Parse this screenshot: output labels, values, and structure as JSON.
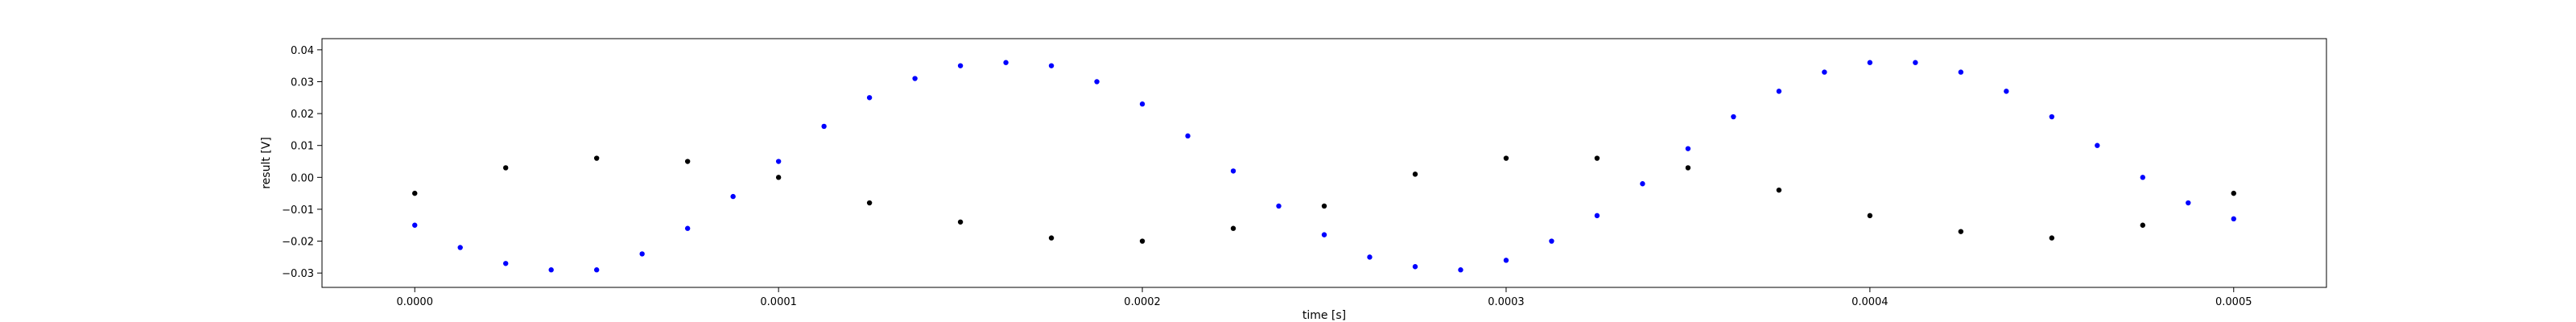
{
  "chart_data": {
    "type": "scatter",
    "title": "",
    "xlabel": "time [s]",
    "ylabel": "result [V]",
    "xlim": [
      -2.55e-05,
      0.0005255
    ],
    "ylim": [
      -0.0345,
      0.0435
    ],
    "xticks": [
      0.0,
      0.0001,
      0.0002,
      0.0003,
      0.0004,
      0.0005
    ],
    "xtick_labels": [
      "0.0000",
      "0.0001",
      "0.0002",
      "0.0003",
      "0.0004",
      "0.0005"
    ],
    "yticks": [
      -0.03,
      -0.02,
      -0.01,
      0.0,
      0.01,
      0.02,
      0.03,
      0.04
    ],
    "ytick_labels": [
      "−0.03",
      "−0.02",
      "−0.01",
      "0.00",
      "0.01",
      "0.02",
      "0.03",
      "0.04"
    ],
    "grid": false,
    "legend": "none",
    "series": [
      {
        "color": "#0000ff",
        "marker": "dot",
        "x": [
          0.0,
          1.25e-05,
          2.5e-05,
          3.75e-05,
          5e-05,
          6.25e-05,
          7.5e-05,
          8.75e-05,
          0.0001,
          0.0001125,
          0.000125,
          0.0001375,
          0.00015,
          0.0001625,
          0.000175,
          0.0001875,
          0.0002,
          0.0002125,
          0.000225,
          0.0002375,
          0.00025,
          0.0002625,
          0.000275,
          0.0002875,
          0.0003,
          0.0003125,
          0.000325,
          0.0003375,
          0.00035,
          0.0003625,
          0.000375,
          0.0003875,
          0.0004,
          0.0004125,
          0.000425,
          0.0004375,
          0.00045,
          0.0004625,
          0.000475,
          0.0004875,
          0.0005
        ],
        "y": [
          -0.015,
          -0.022,
          -0.027,
          -0.029,
          -0.029,
          -0.024,
          -0.016,
          -0.006,
          0.005,
          0.016,
          0.025,
          0.031,
          0.035,
          0.036,
          0.035,
          0.03,
          0.023,
          0.013,
          0.002,
          -0.009,
          -0.018,
          -0.025,
          -0.028,
          -0.029,
          -0.026,
          -0.02,
          -0.012,
          -0.002,
          0.009,
          0.019,
          0.027,
          0.033,
          0.036,
          0.036,
          0.033,
          0.027,
          0.019,
          0.01,
          0.0,
          -0.008,
          -0.013
        ]
      },
      {
        "color": "#000000",
        "marker": "dot",
        "x": [
          0.0,
          2.5e-05,
          5e-05,
          7.5e-05,
          0.0001,
          0.000125,
          0.00015,
          0.000175,
          0.0002,
          0.000225,
          0.00025,
          0.000275,
          0.0003,
          0.000325,
          0.00035,
          0.000375,
          0.0004,
          0.000425,
          0.00045,
          0.000475,
          0.0005
        ],
        "y": [
          -0.005,
          0.003,
          0.006,
          0.005,
          0.0,
          -0.008,
          -0.014,
          -0.019,
          -0.02,
          -0.016,
          -0.009,
          0.001,
          0.006,
          0.006,
          0.003,
          -0.004,
          -0.012,
          -0.017,
          -0.019,
          -0.015,
          -0.005
        ]
      }
    ]
  }
}
